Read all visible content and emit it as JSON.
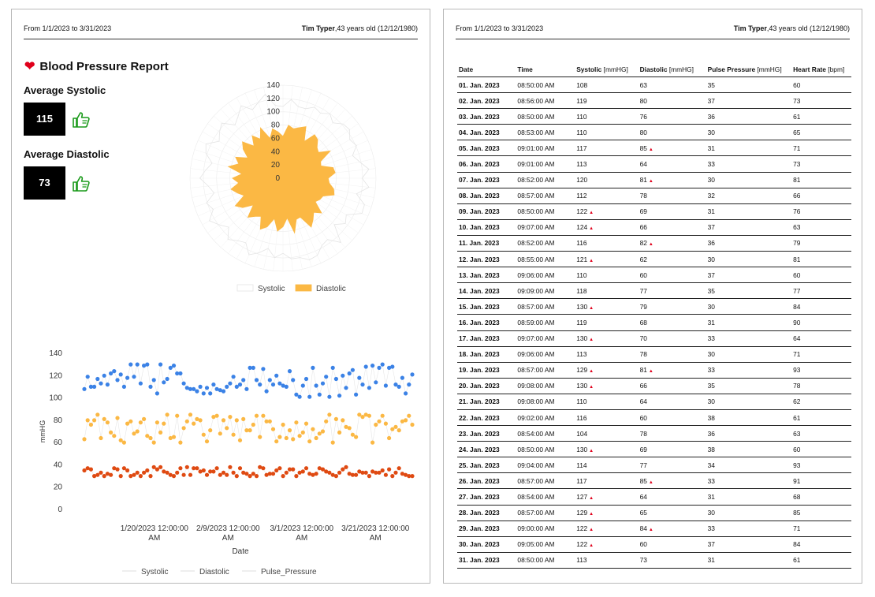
{
  "report": {
    "date_range": "From 1/1/2023 to 3/31/2023",
    "patient_name": "Tim Typer",
    "patient_info": ",43 years old (12/12/1980)",
    "title": "Blood Pressure Report",
    "avg_systolic_label": "Average Systolic",
    "avg_systolic_value": "115",
    "avg_diastolic_label": "Average Diastolic",
    "avg_diastolic_value": "73",
    "icons": {
      "title": "heart-icon",
      "rating": "thumbs-up-icon"
    },
    "colors": {
      "heart": "#e0001b",
      "thumb": "#1a9a1a",
      "systolic": "#3b82e6",
      "diastolic": "#fbb844",
      "pulse_pressure": "#df4a12",
      "flag": "#e0001b"
    }
  },
  "chart_data": [
    {
      "type": "radar",
      "radial_ticks": [
        "140",
        "120",
        "100",
        "80",
        "60",
        "40",
        "20",
        "0"
      ],
      "rlim": [
        0,
        140
      ],
      "legend": [
        "Systolic",
        "Diastolic"
      ],
      "legend_position": "bottom",
      "series": [
        {
          "name": "Systolic",
          "values": [
            108,
            119,
            110,
            110,
            117,
            113,
            120,
            112,
            122,
            124,
            116,
            121,
            110,
            118,
            130,
            119,
            130,
            113,
            129,
            130,
            110,
            116,
            104,
            130,
            114,
            117,
            127,
            129,
            122,
            122,
            113,
            120,
            108,
            118,
            126,
            112,
            116,
            124,
            110,
            119,
            128,
            115,
            121,
            106,
            113,
            125,
            117,
            109,
            122,
            127,
            111,
            118,
            124,
            108,
            115,
            126,
            113,
            120,
            129,
            110
          ]
        },
        {
          "name": "Diastolic",
          "values": [
            63,
            80,
            76,
            80,
            85,
            64,
            81,
            78,
            69,
            66,
            82,
            62,
            60,
            77,
            79,
            68,
            70,
            78,
            81,
            66,
            64,
            60,
            78,
            69,
            77,
            85,
            64,
            65,
            84,
            60,
            73,
            80,
            62,
            77,
            84,
            66,
            71,
            79,
            60,
            75,
            83,
            64,
            72,
            80,
            67,
            76,
            62,
            84,
            70,
            78,
            61,
            74,
            82,
            65,
            79,
            68,
            83,
            63,
            76,
            70
          ]
        }
      ]
    },
    {
      "type": "scatter",
      "xlabel": "Date",
      "ylabel": "mmHG",
      "ylim": [
        0,
        140
      ],
      "yticks": [
        0,
        20,
        40,
        60,
        80,
        100,
        120,
        140
      ],
      "x_start": "1/1/2023",
      "x_end": "3/31/2023",
      "xticks": [
        {
          "line1": "1/20/2023 12:00:00",
          "line2": "AM",
          "date": "2023-01-20"
        },
        {
          "line1": "2/9/2023 12:00:00",
          "line2": "AM",
          "date": "2023-02-09"
        },
        {
          "line1": "3/1/2023 12:00:00",
          "line2": "AM",
          "date": "2023-03-01"
        },
        {
          "line1": "3/21/2023 12:00:00",
          "line2": "AM",
          "date": "2023-03-21"
        }
      ],
      "legend": [
        "Systolic",
        "Diastolic",
        "Pulse_Pressure"
      ],
      "legend_position": "bottom",
      "series": [
        {
          "name": "Systolic",
          "values": [
            108,
            119,
            110,
            110,
            117,
            113,
            120,
            112,
            122,
            124,
            116,
            121,
            110,
            118,
            130,
            119,
            130,
            113,
            129,
            130,
            110,
            116,
            104,
            130,
            114,
            117,
            127,
            129,
            122,
            122,
            113,
            109,
            108,
            108,
            106,
            110,
            104,
            109,
            104,
            112,
            108,
            107,
            106,
            110,
            113,
            119,
            110,
            112,
            116,
            108,
            127,
            127,
            116,
            112,
            126,
            106,
            116,
            112,
            120,
            113,
            111,
            110,
            124,
            116,
            103,
            101,
            111,
            117,
            101,
            127,
            111,
            103,
            113,
            119,
            101,
            127,
            117,
            102,
            120,
            109,
            122,
            125,
            103,
            118,
            112,
            128,
            109,
            129,
            114,
            127,
            130,
            111,
            127,
            128,
            112,
            110,
            118,
            104,
            112,
            121
          ]
        },
        {
          "name": "Diastolic",
          "values": [
            63,
            80,
            76,
            80,
            85,
            64,
            81,
            78,
            69,
            66,
            82,
            62,
            60,
            77,
            79,
            68,
            70,
            78,
            81,
            66,
            64,
            60,
            78,
            69,
            77,
            85,
            64,
            65,
            84,
            60,
            73,
            79,
            85,
            77,
            81,
            80,
            67,
            61,
            71,
            83,
            84,
            68,
            80,
            73,
            83,
            67,
            80,
            62,
            81,
            71,
            71,
            76,
            84,
            65,
            84,
            79,
            79,
            72,
            61,
            65,
            76,
            64,
            71,
            63,
            78,
            66,
            69,
            77,
            61,
            72,
            64,
            68,
            70,
            79,
            85,
            60,
            81,
            69,
            80,
            74,
            73,
            67,
            65,
            85,
            83,
            85,
            84,
            60,
            76,
            79,
            84,
            77,
            64,
            72,
            74,
            71,
            79,
            80,
            84,
            76
          ]
        },
        {
          "name": "Pulse_Pressure",
          "values": [
            35,
            37,
            36,
            30,
            31,
            33,
            30,
            32,
            31,
            37,
            36,
            30,
            37,
            35,
            30,
            31,
            33,
            30,
            33,
            35,
            30,
            38,
            36,
            38,
            34,
            33,
            31,
            30,
            33,
            37,
            31,
            38,
            31,
            37,
            37,
            34,
            35,
            31,
            34,
            34,
            37,
            31,
            33,
            31,
            38,
            33,
            30,
            37,
            33,
            32,
            30,
            32,
            30,
            38,
            37,
            31,
            32,
            32,
            35,
            37,
            30,
            33,
            36,
            36,
            30,
            33,
            34,
            37,
            32,
            31,
            32,
            37,
            36,
            34,
            33,
            31,
            30,
            33,
            36,
            38,
            32,
            31,
            31,
            34,
            33,
            33,
            30,
            34,
            33,
            33,
            35,
            31,
            36,
            30,
            33,
            37,
            32,
            31,
            30,
            30
          ]
        }
      ]
    }
  ],
  "table": {
    "headers": [
      {
        "label": "Date",
        "unit": ""
      },
      {
        "label": "Time",
        "unit": ""
      },
      {
        "label": "Systolic",
        "unit": " [mmHG]"
      },
      {
        "label": "Diastolic",
        "unit": " [mmHG]"
      },
      {
        "label": "Pulse Pressure",
        "unit": " [mmHG]"
      },
      {
        "label": "Heart Rate",
        "unit": " [bpm]"
      }
    ],
    "rows": [
      [
        "01. Jan. 2023",
        "08:50:00 AM",
        "108",
        "63",
        "35",
        "60",
        false,
        false
      ],
      [
        "02. Jan. 2023",
        "08:56:00 AM",
        "119",
        "80",
        "37",
        "73",
        false,
        false
      ],
      [
        "03. Jan. 2023",
        "08:50:00 AM",
        "110",
        "76",
        "36",
        "61",
        false,
        false
      ],
      [
        "04. Jan. 2023",
        "08:53:00 AM",
        "110",
        "80",
        "30",
        "65",
        false,
        false
      ],
      [
        "05. Jan. 2023",
        "09:01:00 AM",
        "117",
        "85",
        "31",
        "71",
        false,
        true
      ],
      [
        "06. Jan. 2023",
        "09:01:00 AM",
        "113",
        "64",
        "33",
        "73",
        false,
        false
      ],
      [
        "07. Jan. 2023",
        "08:52:00 AM",
        "120",
        "81",
        "30",
        "81",
        false,
        true
      ],
      [
        "08. Jan. 2023",
        "08:57:00 AM",
        "112",
        "78",
        "32",
        "66",
        false,
        false
      ],
      [
        "09. Jan. 2023",
        "08:50:00 AM",
        "122",
        "69",
        "31",
        "76",
        true,
        false
      ],
      [
        "10. Jan. 2023",
        "09:07:00 AM",
        "124",
        "66",
        "37",
        "63",
        true,
        false
      ],
      [
        "11. Jan. 2023",
        "08:52:00 AM",
        "116",
        "82",
        "36",
        "79",
        false,
        true
      ],
      [
        "12. Jan. 2023",
        "08:55:00 AM",
        "121",
        "62",
        "30",
        "81",
        true,
        false
      ],
      [
        "13. Jan. 2023",
        "09:06:00 AM",
        "110",
        "60",
        "37",
        "60",
        false,
        false
      ],
      [
        "14. Jan. 2023",
        "09:09:00 AM",
        "118",
        "77",
        "35",
        "77",
        false,
        false
      ],
      [
        "15. Jan. 2023",
        "08:57:00 AM",
        "130",
        "79",
        "30",
        "84",
        true,
        false
      ],
      [
        "16. Jan. 2023",
        "08:59:00 AM",
        "119",
        "68",
        "31",
        "90",
        false,
        false
      ],
      [
        "17. Jan. 2023",
        "09:07:00 AM",
        "130",
        "70",
        "33",
        "64",
        true,
        false
      ],
      [
        "18. Jan. 2023",
        "09:06:00 AM",
        "113",
        "78",
        "30",
        "71",
        false,
        false
      ],
      [
        "19. Jan. 2023",
        "08:57:00 AM",
        "129",
        "81",
        "33",
        "93",
        true,
        true
      ],
      [
        "20. Jan. 2023",
        "09:08:00 AM",
        "130",
        "66",
        "35",
        "78",
        true,
        false
      ],
      [
        "21. Jan. 2023",
        "09:08:00 AM",
        "110",
        "64",
        "30",
        "62",
        false,
        false
      ],
      [
        "22. Jan. 2023",
        "09:02:00 AM",
        "116",
        "60",
        "38",
        "61",
        false,
        false
      ],
      [
        "23. Jan. 2023",
        "08:54:00 AM",
        "104",
        "78",
        "36",
        "63",
        false,
        false
      ],
      [
        "24. Jan. 2023",
        "08:50:00 AM",
        "130",
        "69",
        "38",
        "60",
        true,
        false
      ],
      [
        "25. Jan. 2023",
        "09:04:00 AM",
        "114",
        "77",
        "34",
        "93",
        false,
        false
      ],
      [
        "26. Jan. 2023",
        "08:57:00 AM",
        "117",
        "85",
        "33",
        "91",
        false,
        true
      ],
      [
        "27. Jan. 2023",
        "08:54:00 AM",
        "127",
        "64",
        "31",
        "68",
        true,
        false
      ],
      [
        "28. Jan. 2023",
        "08:57:00 AM",
        "129",
        "65",
        "30",
        "85",
        true,
        false
      ],
      [
        "29. Jan. 2023",
        "09:00:00 AM",
        "122",
        "84",
        "33",
        "71",
        true,
        true
      ],
      [
        "30. Jan. 2023",
        "09:05:00 AM",
        "122",
        "60",
        "37",
        "84",
        true,
        false
      ],
      [
        "31. Jan. 2023",
        "08:50:00 AM",
        "113",
        "73",
        "31",
        "61",
        false,
        false
      ]
    ]
  }
}
